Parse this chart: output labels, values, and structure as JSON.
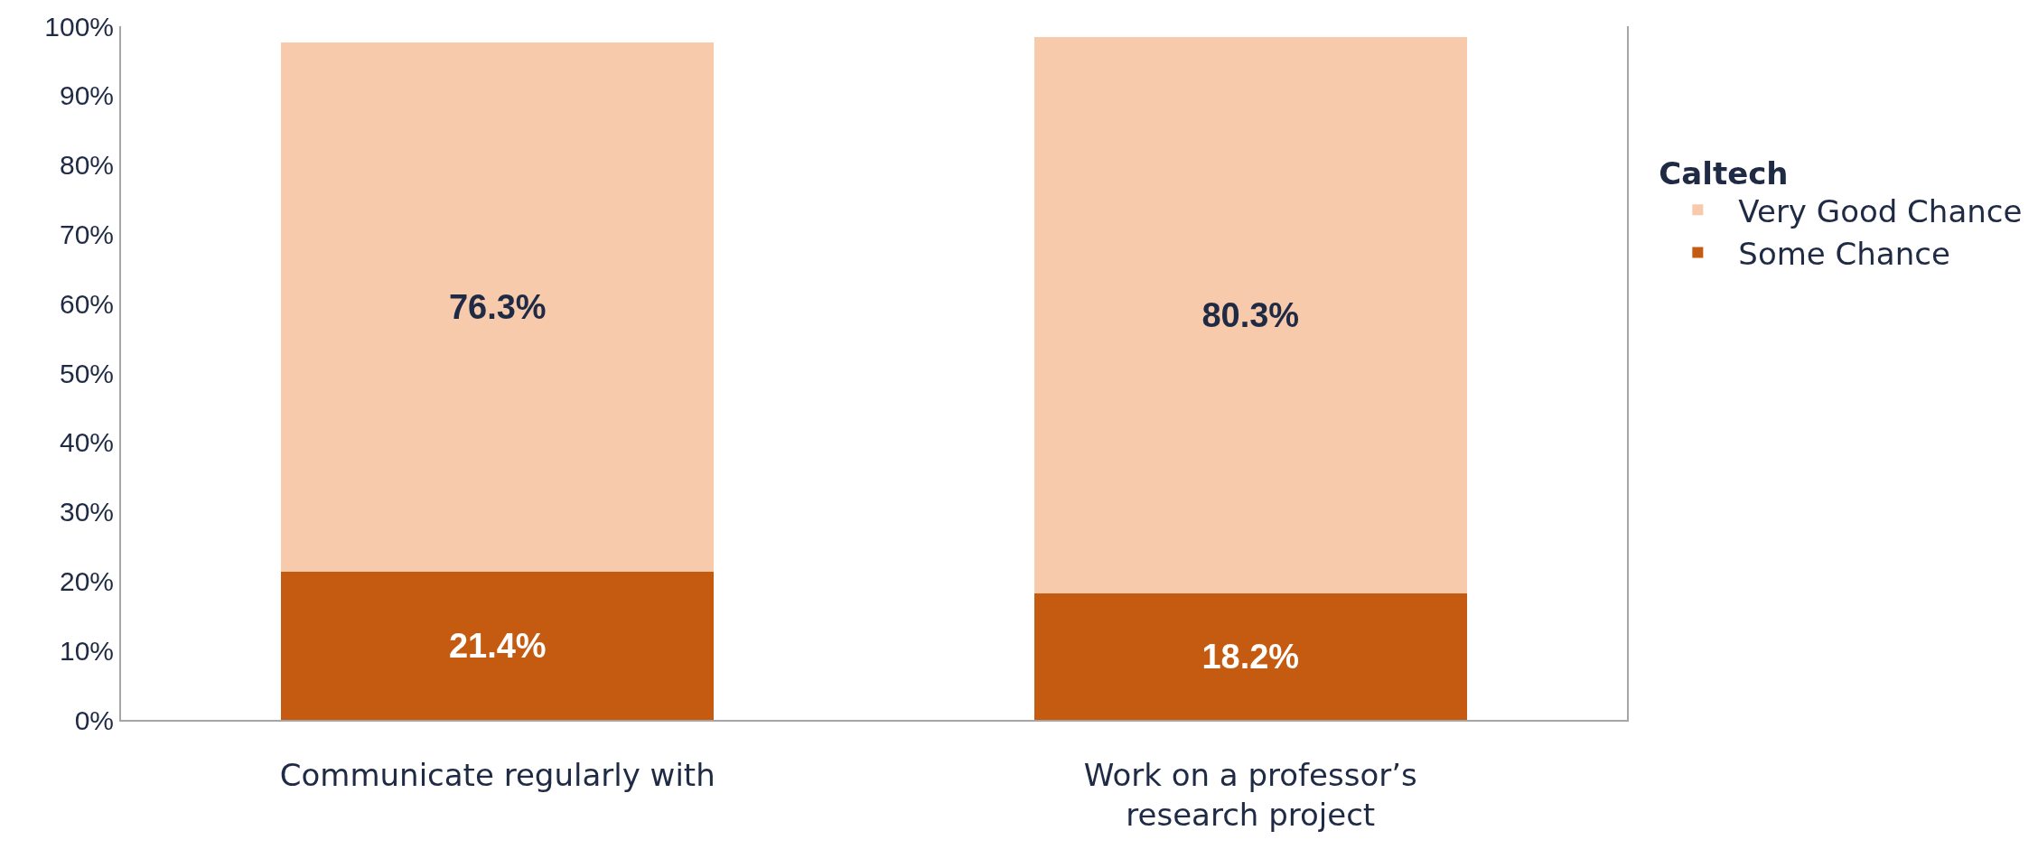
{
  "chart_data": {
    "type": "bar",
    "stacked": true,
    "legend_title": "Caltech",
    "legend": "right",
    "categories": [
      "Communicate regularly with",
      "Work on a professor’s research project"
    ],
    "series": [
      {
        "name": "Some Chance",
        "color": "#c55a11",
        "values": [
          21.4,
          18.2
        ],
        "value_labels": [
          "21.4%",
          "18.2%"
        ]
      },
      {
        "name": "Very Good Chance",
        "color": "#f7caac",
        "values": [
          76.3,
          80.3
        ],
        "value_labels": [
          "76.3%",
          "80.3%"
        ]
      }
    ],
    "ylim": [
      0,
      100
    ],
    "yticks": [
      {
        "value": 0,
        "label": "0%"
      },
      {
        "value": 10,
        "label": "10%"
      },
      {
        "value": 20,
        "label": "20%"
      },
      {
        "value": 30,
        "label": "30%"
      },
      {
        "value": 40,
        "label": "40%"
      },
      {
        "value": 50,
        "label": "50%"
      },
      {
        "value": 60,
        "label": "60%"
      },
      {
        "value": 70,
        "label": "70%"
      },
      {
        "value": 80,
        "label": "80%"
      },
      {
        "value": 90,
        "label": "90%"
      },
      {
        "value": 100,
        "label": "100%"
      }
    ],
    "grid": false
  }
}
